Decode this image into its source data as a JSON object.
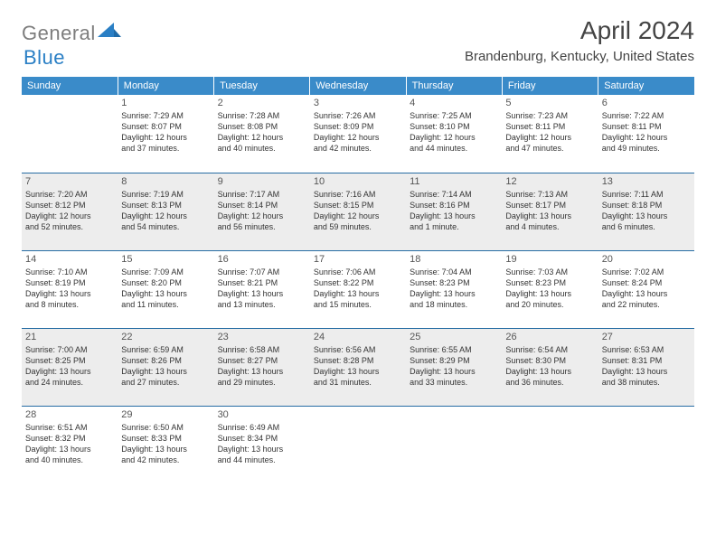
{
  "logo": {
    "part1": "General",
    "part2": "Blue"
  },
  "title": "April 2024",
  "location": "Brandenburg, Kentucky, United States",
  "colors": {
    "header_bg": "#3a8bc9",
    "header_fg": "#ffffff",
    "row_border": "#276da4",
    "alt_bg": "#ededed",
    "logo_gray": "#7d7d7d",
    "logo_blue": "#2a7fc5"
  },
  "weekdays": [
    "Sunday",
    "Monday",
    "Tuesday",
    "Wednesday",
    "Thursday",
    "Friday",
    "Saturday"
  ],
  "weeks": [
    {
      "alt": false,
      "days": [
        null,
        {
          "n": "1",
          "sr": "Sunrise: 7:29 AM",
          "ss": "Sunset: 8:07 PM",
          "d1": "Daylight: 12 hours",
          "d2": "and 37 minutes."
        },
        {
          "n": "2",
          "sr": "Sunrise: 7:28 AM",
          "ss": "Sunset: 8:08 PM",
          "d1": "Daylight: 12 hours",
          "d2": "and 40 minutes."
        },
        {
          "n": "3",
          "sr": "Sunrise: 7:26 AM",
          "ss": "Sunset: 8:09 PM",
          "d1": "Daylight: 12 hours",
          "d2": "and 42 minutes."
        },
        {
          "n": "4",
          "sr": "Sunrise: 7:25 AM",
          "ss": "Sunset: 8:10 PM",
          "d1": "Daylight: 12 hours",
          "d2": "and 44 minutes."
        },
        {
          "n": "5",
          "sr": "Sunrise: 7:23 AM",
          "ss": "Sunset: 8:11 PM",
          "d1": "Daylight: 12 hours",
          "d2": "and 47 minutes."
        },
        {
          "n": "6",
          "sr": "Sunrise: 7:22 AM",
          "ss": "Sunset: 8:11 PM",
          "d1": "Daylight: 12 hours",
          "d2": "and 49 minutes."
        }
      ]
    },
    {
      "alt": true,
      "days": [
        {
          "n": "7",
          "sr": "Sunrise: 7:20 AM",
          "ss": "Sunset: 8:12 PM",
          "d1": "Daylight: 12 hours",
          "d2": "and 52 minutes."
        },
        {
          "n": "8",
          "sr": "Sunrise: 7:19 AM",
          "ss": "Sunset: 8:13 PM",
          "d1": "Daylight: 12 hours",
          "d2": "and 54 minutes."
        },
        {
          "n": "9",
          "sr": "Sunrise: 7:17 AM",
          "ss": "Sunset: 8:14 PM",
          "d1": "Daylight: 12 hours",
          "d2": "and 56 minutes."
        },
        {
          "n": "10",
          "sr": "Sunrise: 7:16 AM",
          "ss": "Sunset: 8:15 PM",
          "d1": "Daylight: 12 hours",
          "d2": "and 59 minutes."
        },
        {
          "n": "11",
          "sr": "Sunrise: 7:14 AM",
          "ss": "Sunset: 8:16 PM",
          "d1": "Daylight: 13 hours",
          "d2": "and 1 minute."
        },
        {
          "n": "12",
          "sr": "Sunrise: 7:13 AM",
          "ss": "Sunset: 8:17 PM",
          "d1": "Daylight: 13 hours",
          "d2": "and 4 minutes."
        },
        {
          "n": "13",
          "sr": "Sunrise: 7:11 AM",
          "ss": "Sunset: 8:18 PM",
          "d1": "Daylight: 13 hours",
          "d2": "and 6 minutes."
        }
      ]
    },
    {
      "alt": false,
      "days": [
        {
          "n": "14",
          "sr": "Sunrise: 7:10 AM",
          "ss": "Sunset: 8:19 PM",
          "d1": "Daylight: 13 hours",
          "d2": "and 8 minutes."
        },
        {
          "n": "15",
          "sr": "Sunrise: 7:09 AM",
          "ss": "Sunset: 8:20 PM",
          "d1": "Daylight: 13 hours",
          "d2": "and 11 minutes."
        },
        {
          "n": "16",
          "sr": "Sunrise: 7:07 AM",
          "ss": "Sunset: 8:21 PM",
          "d1": "Daylight: 13 hours",
          "d2": "and 13 minutes."
        },
        {
          "n": "17",
          "sr": "Sunrise: 7:06 AM",
          "ss": "Sunset: 8:22 PM",
          "d1": "Daylight: 13 hours",
          "d2": "and 15 minutes."
        },
        {
          "n": "18",
          "sr": "Sunrise: 7:04 AM",
          "ss": "Sunset: 8:23 PM",
          "d1": "Daylight: 13 hours",
          "d2": "and 18 minutes."
        },
        {
          "n": "19",
          "sr": "Sunrise: 7:03 AM",
          "ss": "Sunset: 8:23 PM",
          "d1": "Daylight: 13 hours",
          "d2": "and 20 minutes."
        },
        {
          "n": "20",
          "sr": "Sunrise: 7:02 AM",
          "ss": "Sunset: 8:24 PM",
          "d1": "Daylight: 13 hours",
          "d2": "and 22 minutes."
        }
      ]
    },
    {
      "alt": true,
      "days": [
        {
          "n": "21",
          "sr": "Sunrise: 7:00 AM",
          "ss": "Sunset: 8:25 PM",
          "d1": "Daylight: 13 hours",
          "d2": "and 24 minutes."
        },
        {
          "n": "22",
          "sr": "Sunrise: 6:59 AM",
          "ss": "Sunset: 8:26 PM",
          "d1": "Daylight: 13 hours",
          "d2": "and 27 minutes."
        },
        {
          "n": "23",
          "sr": "Sunrise: 6:58 AM",
          "ss": "Sunset: 8:27 PM",
          "d1": "Daylight: 13 hours",
          "d2": "and 29 minutes."
        },
        {
          "n": "24",
          "sr": "Sunrise: 6:56 AM",
          "ss": "Sunset: 8:28 PM",
          "d1": "Daylight: 13 hours",
          "d2": "and 31 minutes."
        },
        {
          "n": "25",
          "sr": "Sunrise: 6:55 AM",
          "ss": "Sunset: 8:29 PM",
          "d1": "Daylight: 13 hours",
          "d2": "and 33 minutes."
        },
        {
          "n": "26",
          "sr": "Sunrise: 6:54 AM",
          "ss": "Sunset: 8:30 PM",
          "d1": "Daylight: 13 hours",
          "d2": "and 36 minutes."
        },
        {
          "n": "27",
          "sr": "Sunrise: 6:53 AM",
          "ss": "Sunset: 8:31 PM",
          "d1": "Daylight: 13 hours",
          "d2": "and 38 minutes."
        }
      ]
    },
    {
      "alt": false,
      "days": [
        {
          "n": "28",
          "sr": "Sunrise: 6:51 AM",
          "ss": "Sunset: 8:32 PM",
          "d1": "Daylight: 13 hours",
          "d2": "and 40 minutes."
        },
        {
          "n": "29",
          "sr": "Sunrise: 6:50 AM",
          "ss": "Sunset: 8:33 PM",
          "d1": "Daylight: 13 hours",
          "d2": "and 42 minutes."
        },
        {
          "n": "30",
          "sr": "Sunrise: 6:49 AM",
          "ss": "Sunset: 8:34 PM",
          "d1": "Daylight: 13 hours",
          "d2": "and 44 minutes."
        },
        null,
        null,
        null,
        null
      ]
    }
  ]
}
